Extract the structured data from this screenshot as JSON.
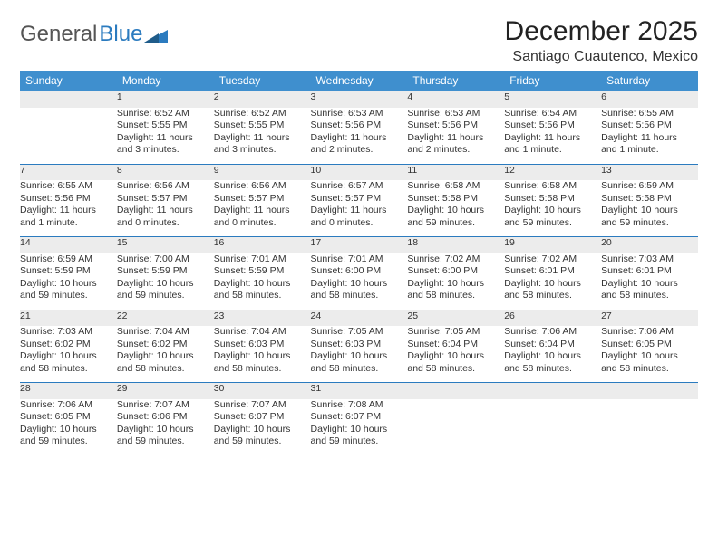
{
  "logo": {
    "text1": "General",
    "text2": "Blue"
  },
  "title": "December 2025",
  "location": "Santiago Cuautenco, Mexico",
  "header_color": "#3f8fce",
  "rule_color": "#2b7bbf",
  "daynum_bg": "#ececec",
  "weekday_names": [
    "Sunday",
    "Monday",
    "Tuesday",
    "Wednesday",
    "Thursday",
    "Friday",
    "Saturday"
  ],
  "weeks": [
    [
      null,
      {
        "n": "1",
        "sr": "Sunrise: 6:52 AM",
        "ss": "Sunset: 5:55 PM",
        "d1": "Daylight: 11 hours",
        "d2": "and 3 minutes."
      },
      {
        "n": "2",
        "sr": "Sunrise: 6:52 AM",
        "ss": "Sunset: 5:55 PM",
        "d1": "Daylight: 11 hours",
        "d2": "and 3 minutes."
      },
      {
        "n": "3",
        "sr": "Sunrise: 6:53 AM",
        "ss": "Sunset: 5:56 PM",
        "d1": "Daylight: 11 hours",
        "d2": "and 2 minutes."
      },
      {
        "n": "4",
        "sr": "Sunrise: 6:53 AM",
        "ss": "Sunset: 5:56 PM",
        "d1": "Daylight: 11 hours",
        "d2": "and 2 minutes."
      },
      {
        "n": "5",
        "sr": "Sunrise: 6:54 AM",
        "ss": "Sunset: 5:56 PM",
        "d1": "Daylight: 11 hours",
        "d2": "and 1 minute."
      },
      {
        "n": "6",
        "sr": "Sunrise: 6:55 AM",
        "ss": "Sunset: 5:56 PM",
        "d1": "Daylight: 11 hours",
        "d2": "and 1 minute."
      }
    ],
    [
      {
        "n": "7",
        "sr": "Sunrise: 6:55 AM",
        "ss": "Sunset: 5:56 PM",
        "d1": "Daylight: 11 hours",
        "d2": "and 1 minute."
      },
      {
        "n": "8",
        "sr": "Sunrise: 6:56 AM",
        "ss": "Sunset: 5:57 PM",
        "d1": "Daylight: 11 hours",
        "d2": "and 0 minutes."
      },
      {
        "n": "9",
        "sr": "Sunrise: 6:56 AM",
        "ss": "Sunset: 5:57 PM",
        "d1": "Daylight: 11 hours",
        "d2": "and 0 minutes."
      },
      {
        "n": "10",
        "sr": "Sunrise: 6:57 AM",
        "ss": "Sunset: 5:57 PM",
        "d1": "Daylight: 11 hours",
        "d2": "and 0 minutes."
      },
      {
        "n": "11",
        "sr": "Sunrise: 6:58 AM",
        "ss": "Sunset: 5:58 PM",
        "d1": "Daylight: 10 hours",
        "d2": "and 59 minutes."
      },
      {
        "n": "12",
        "sr": "Sunrise: 6:58 AM",
        "ss": "Sunset: 5:58 PM",
        "d1": "Daylight: 10 hours",
        "d2": "and 59 minutes."
      },
      {
        "n": "13",
        "sr": "Sunrise: 6:59 AM",
        "ss": "Sunset: 5:58 PM",
        "d1": "Daylight: 10 hours",
        "d2": "and 59 minutes."
      }
    ],
    [
      {
        "n": "14",
        "sr": "Sunrise: 6:59 AM",
        "ss": "Sunset: 5:59 PM",
        "d1": "Daylight: 10 hours",
        "d2": "and 59 minutes."
      },
      {
        "n": "15",
        "sr": "Sunrise: 7:00 AM",
        "ss": "Sunset: 5:59 PM",
        "d1": "Daylight: 10 hours",
        "d2": "and 59 minutes."
      },
      {
        "n": "16",
        "sr": "Sunrise: 7:01 AM",
        "ss": "Sunset: 5:59 PM",
        "d1": "Daylight: 10 hours",
        "d2": "and 58 minutes."
      },
      {
        "n": "17",
        "sr": "Sunrise: 7:01 AM",
        "ss": "Sunset: 6:00 PM",
        "d1": "Daylight: 10 hours",
        "d2": "and 58 minutes."
      },
      {
        "n": "18",
        "sr": "Sunrise: 7:02 AM",
        "ss": "Sunset: 6:00 PM",
        "d1": "Daylight: 10 hours",
        "d2": "and 58 minutes."
      },
      {
        "n": "19",
        "sr": "Sunrise: 7:02 AM",
        "ss": "Sunset: 6:01 PM",
        "d1": "Daylight: 10 hours",
        "d2": "and 58 minutes."
      },
      {
        "n": "20",
        "sr": "Sunrise: 7:03 AM",
        "ss": "Sunset: 6:01 PM",
        "d1": "Daylight: 10 hours",
        "d2": "and 58 minutes."
      }
    ],
    [
      {
        "n": "21",
        "sr": "Sunrise: 7:03 AM",
        "ss": "Sunset: 6:02 PM",
        "d1": "Daylight: 10 hours",
        "d2": "and 58 minutes."
      },
      {
        "n": "22",
        "sr": "Sunrise: 7:04 AM",
        "ss": "Sunset: 6:02 PM",
        "d1": "Daylight: 10 hours",
        "d2": "and 58 minutes."
      },
      {
        "n": "23",
        "sr": "Sunrise: 7:04 AM",
        "ss": "Sunset: 6:03 PM",
        "d1": "Daylight: 10 hours",
        "d2": "and 58 minutes."
      },
      {
        "n": "24",
        "sr": "Sunrise: 7:05 AM",
        "ss": "Sunset: 6:03 PM",
        "d1": "Daylight: 10 hours",
        "d2": "and 58 minutes."
      },
      {
        "n": "25",
        "sr": "Sunrise: 7:05 AM",
        "ss": "Sunset: 6:04 PM",
        "d1": "Daylight: 10 hours",
        "d2": "and 58 minutes."
      },
      {
        "n": "26",
        "sr": "Sunrise: 7:06 AM",
        "ss": "Sunset: 6:04 PM",
        "d1": "Daylight: 10 hours",
        "d2": "and 58 minutes."
      },
      {
        "n": "27",
        "sr": "Sunrise: 7:06 AM",
        "ss": "Sunset: 6:05 PM",
        "d1": "Daylight: 10 hours",
        "d2": "and 58 minutes."
      }
    ],
    [
      {
        "n": "28",
        "sr": "Sunrise: 7:06 AM",
        "ss": "Sunset: 6:05 PM",
        "d1": "Daylight: 10 hours",
        "d2": "and 59 minutes."
      },
      {
        "n": "29",
        "sr": "Sunrise: 7:07 AM",
        "ss": "Sunset: 6:06 PM",
        "d1": "Daylight: 10 hours",
        "d2": "and 59 minutes."
      },
      {
        "n": "30",
        "sr": "Sunrise: 7:07 AM",
        "ss": "Sunset: 6:07 PM",
        "d1": "Daylight: 10 hours",
        "d2": "and 59 minutes."
      },
      {
        "n": "31",
        "sr": "Sunrise: 7:08 AM",
        "ss": "Sunset: 6:07 PM",
        "d1": "Daylight: 10 hours",
        "d2": "and 59 minutes."
      },
      null,
      null,
      null
    ]
  ]
}
